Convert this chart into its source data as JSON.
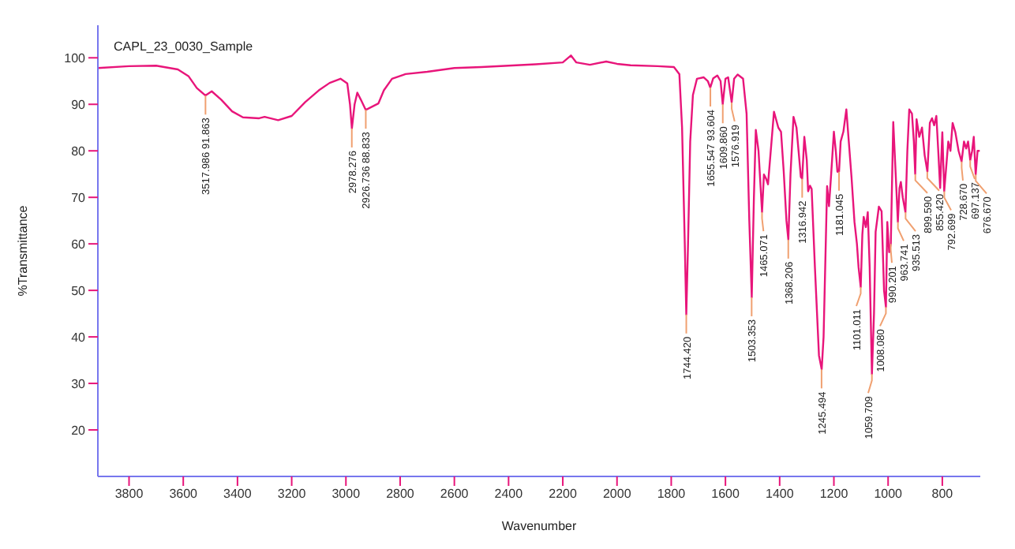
{
  "chart_data": {
    "type": "line",
    "title": "CAPL_23_0030_Sample",
    "xlabel": "Wavenumber",
    "ylabel": "%Transmittance",
    "xlim": [
      3915,
      660
    ],
    "ylim": [
      10,
      107
    ],
    "xticks": [
      3800,
      3600,
      3400,
      3200,
      3000,
      2800,
      2600,
      2400,
      2200,
      2000,
      1800,
      1600,
      1400,
      1200,
      1000,
      800
    ],
    "yticks": [
      20,
      30,
      40,
      50,
      60,
      70,
      80,
      90,
      100
    ],
    "grid": false,
    "series": [
      {
        "color": "#e8157a",
        "x": [
          3915,
          3800,
          3700,
          3620,
          3580,
          3550,
          3518,
          3495,
          3460,
          3420,
          3380,
          3320,
          3300,
          3250,
          3200,
          3150,
          3100,
          3060,
          3020,
          2995,
          2985,
          2978,
          2968,
          2958,
          2945,
          2927,
          2910,
          2880,
          2860,
          2830,
          2780,
          2700,
          2600,
          2500,
          2400,
          2300,
          2200,
          2170,
          2150,
          2100,
          2040,
          2000,
          1950,
          1850,
          1790,
          1770,
          1760,
          1750,
          1744.42,
          1738,
          1730,
          1720,
          1705,
          1680,
          1665,
          1656,
          1645,
          1630,
          1618,
          1610,
          1600,
          1590,
          1577,
          1568,
          1555,
          1535,
          1522,
          1512,
          1503,
          1495,
          1488,
          1478,
          1465,
          1458,
          1450,
          1443,
          1430,
          1421,
          1405,
          1395,
          1385,
          1375,
          1368,
          1360,
          1349,
          1338,
          1330,
          1322,
          1317,
          1309,
          1300,
          1295,
          1288,
          1282,
          1270,
          1255,
          1245,
          1238,
          1228,
          1225,
          1218,
          1210,
          1200,
          1193,
          1187,
          1181,
          1175,
          1165,
          1154,
          1145,
          1135,
          1124,
          1115,
          1109,
          1101,
          1095,
          1090,
          1082,
          1075,
          1068,
          1059.7,
          1052,
          1046,
          1034,
          1024,
          1015,
          1008,
          1003,
          996,
          990,
          981,
          972,
          964,
          958,
          953,
          946,
          936,
          929,
          922,
          912,
          905,
          900,
          895,
          885,
          875,
          865,
          855,
          846,
          838,
          830,
          822,
          815,
          808,
          800,
          793,
          785,
          778,
          770,
          762,
          752,
          740,
          729,
          720,
          712,
          705,
          697,
          690,
          684,
          677,
          670,
          662
        ],
        "values": [
          97.8,
          98.2,
          98.3,
          97.5,
          96,
          93.5,
          91.9,
          92.8,
          91,
          88.5,
          87.2,
          87,
          87.3,
          86.6,
          87.5,
          90.5,
          93,
          94.6,
          95.5,
          94.5,
          90,
          84.8,
          90,
          92.5,
          91,
          88.8,
          89.3,
          90.2,
          93,
          95.5,
          96.5,
          97,
          97.8,
          98,
          98.3,
          98.6,
          99,
          100.5,
          99,
          98.5,
          99.2,
          98.7,
          98.4,
          98.2,
          98,
          96.5,
          85,
          60,
          44.8,
          60,
          82,
          92,
          95.5,
          95.8,
          95,
          93.6,
          95.6,
          96.2,
          95,
          90,
          95.5,
          95.8,
          90.4,
          95.5,
          96.4,
          95.5,
          88,
          65,
          48.5,
          70,
          84.5,
          80,
          66.8,
          74.9,
          74,
          72.8,
          82,
          88.4,
          85,
          84.1,
          75.5,
          65,
          60.9,
          75,
          87.3,
          85,
          79.8,
          74.4,
          74,
          83,
          78,
          71.3,
          72.5,
          71.8,
          55,
          36,
          33,
          40,
          65,
          72.4,
          68.1,
          75,
          84.1,
          80,
          75.5,
          75.5,
          82,
          84.1,
          88.9,
          82,
          74.4,
          64.7,
          60,
          55,
          50.7,
          62,
          65.8,
          63.6,
          66.8,
          55,
          32,
          45,
          62.6,
          68,
          67,
          50,
          46.4,
          64.7,
          58.2,
          60,
          86.2,
          75,
          64.7,
          72,
          73.3,
          70,
          66.8,
          80,
          88.9,
          88,
          82,
          75,
          86.8,
          83,
          85,
          79,
          75.5,
          86,
          87,
          85.5,
          87.5,
          80,
          72,
          84,
          71.3,
          77,
          82,
          80,
          86,
          84,
          80,
          77.7,
          82,
          80.5,
          82,
          78,
          80,
          83,
          74.9,
          80,
          80
        ]
      }
    ],
    "annotations": [
      {
        "text": "3517.986  91.863",
        "x": 3517.986,
        "y": 91.863
      },
      {
        "text": "2978.276",
        "x": 2978.276,
        "y": 84.8
      },
      {
        "text": "2926.736  88.833",
        "x": 2926.736,
        "y": 88.833
      },
      {
        "text": "1744.420",
        "x": 1744.42,
        "y": 44.8
      },
      {
        "text": "1655.547  93.604",
        "x": 1655.547,
        "y": 93.604
      },
      {
        "text": "1609.860",
        "x": 1609.86,
        "y": 90
      },
      {
        "text": "1576.919",
        "x": 1576.919,
        "y": 90.4
      },
      {
        "text": "1503.353",
        "x": 1503.353,
        "y": 48.5
      },
      {
        "text": "1465.071",
        "x": 1465.071,
        "y": 66.8
      },
      {
        "text": "1368.206",
        "x": 1368.206,
        "y": 60.9
      },
      {
        "text": "1316.942",
        "x": 1316.942,
        "y": 74
      },
      {
        "text": "1245.494",
        "x": 1245.494,
        "y": 33
      },
      {
        "text": "1181.045",
        "x": 1181.045,
        "y": 75.5
      },
      {
        "text": "1101.011",
        "x": 1101.011,
        "y": 50.7
      },
      {
        "text": "1059.709",
        "x": 1059.709,
        "y": 32
      },
      {
        "text": "1008.080",
        "x": 1008.08,
        "y": 46.4
      },
      {
        "text": "990.201",
        "x": 990.201,
        "y": 60
      },
      {
        "text": "963.741",
        "x": 963.741,
        "y": 64.7
      },
      {
        "text": "935.513",
        "x": 935.513,
        "y": 66.8
      },
      {
        "text": "899.590",
        "x": 899.59,
        "y": 75
      },
      {
        "text": "855.420",
        "x": 855.42,
        "y": 75.5
      },
      {
        "text": "792.699",
        "x": 792.699,
        "y": 71.3
      },
      {
        "text": "728.670",
        "x": 728.67,
        "y": 77.7
      },
      {
        "text": "697.137",
        "x": 697.137,
        "y": 78
      },
      {
        "text": "676.670",
        "x": 676.67,
        "y": 74.9
      }
    ]
  }
}
